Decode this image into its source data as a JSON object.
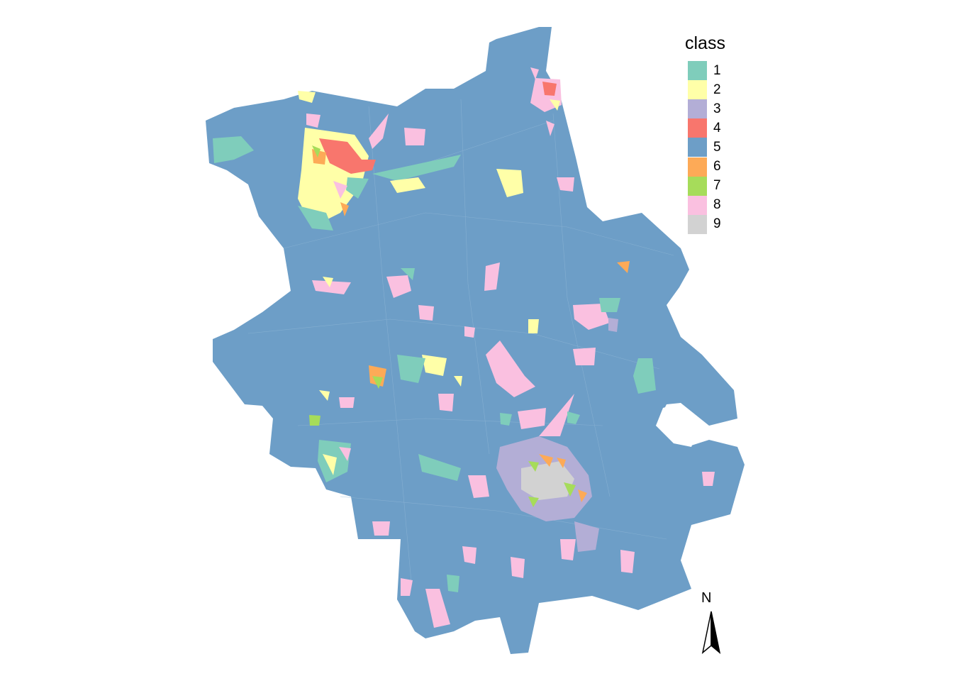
{
  "legend": {
    "title": "class",
    "items": [
      {
        "label": "1",
        "color": "#7fcdbb"
      },
      {
        "label": "2",
        "color": "#ffffa8"
      },
      {
        "label": "3",
        "color": "#b3aed6"
      },
      {
        "label": "4",
        "color": "#f8766d"
      },
      {
        "label": "5",
        "color": "#6d9ec7"
      },
      {
        "label": "6",
        "color": "#fdaa57"
      },
      {
        "label": "7",
        "color": "#a6dc5a"
      },
      {
        "label": "8",
        "color": "#fac0e0"
      },
      {
        "label": "9",
        "color": "#d2d2d2"
      }
    ]
  },
  "north_arrow": {
    "label": "N"
  }
}
